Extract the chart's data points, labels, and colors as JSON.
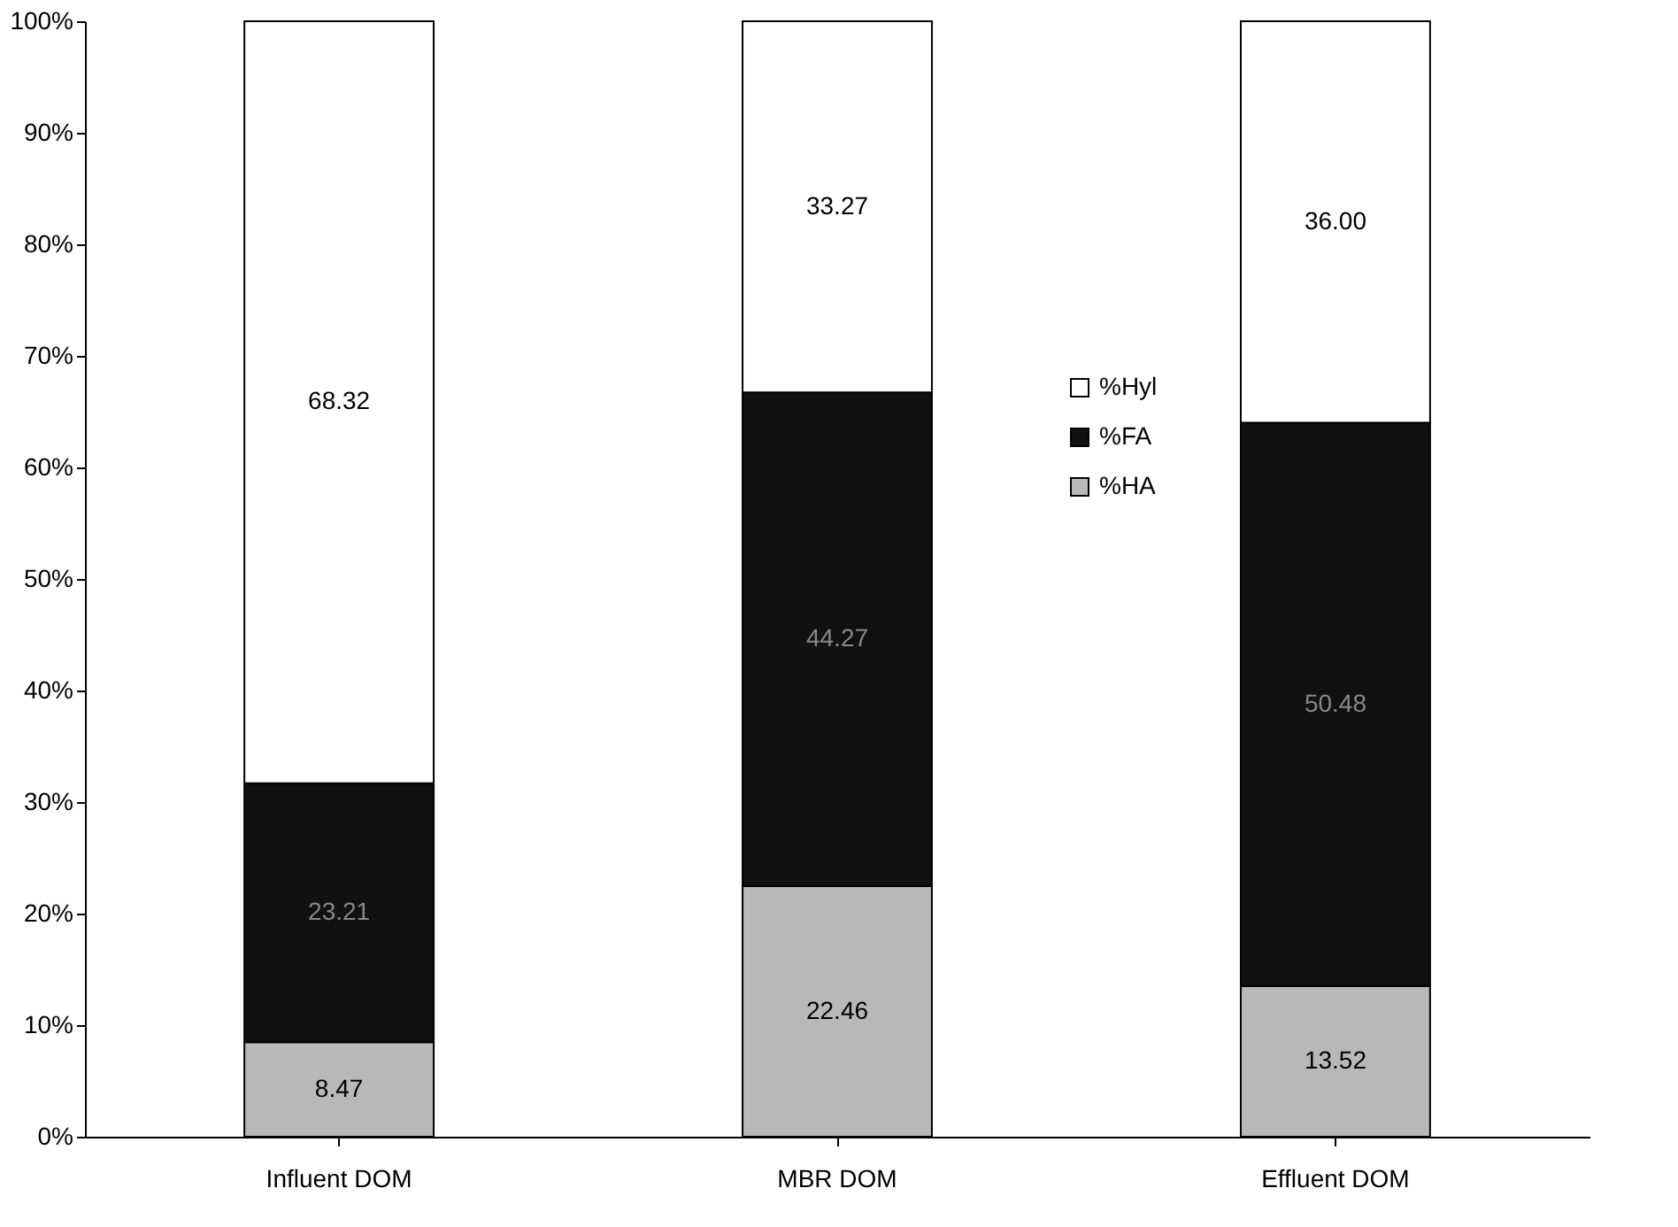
{
  "chart_data": {
    "type": "bar",
    "stacked": true,
    "categories": [
      "Influent DOM",
      "MBR DOM",
      "Effluent DOM"
    ],
    "series": [
      {
        "name": "%HA",
        "color": "#b8b8b8",
        "values": [
          8.47,
          22.46,
          13.52
        ],
        "value_labels": [
          "8.47",
          "22.46",
          "13.52"
        ]
      },
      {
        "name": "%FA",
        "color": "#111111",
        "values": [
          23.21,
          44.27,
          50.48
        ],
        "value_labels": [
          "23.21",
          "44.27",
          "50.48"
        ]
      },
      {
        "name": "%Hyl",
        "color": "#ffffff",
        "values": [
          68.32,
          33.27,
          36.0
        ],
        "value_labels": [
          "68.32",
          "33.27",
          "36.00"
        ]
      }
    ],
    "ylim": [
      0,
      100
    ],
    "yticks": [
      {
        "value": 0,
        "label": "0%"
      },
      {
        "value": 10,
        "label": "10%"
      },
      {
        "value": 20,
        "label": "20%"
      },
      {
        "value": 30,
        "label": "30%"
      },
      {
        "value": 40,
        "label": "40%"
      },
      {
        "value": 50,
        "label": "50%"
      },
      {
        "value": 60,
        "label": "60%"
      },
      {
        "value": 70,
        "label": "70%"
      },
      {
        "value": 80,
        "label": "80%"
      },
      {
        "value": 90,
        "label": "90%"
      },
      {
        "value": 100,
        "label": "100%"
      }
    ],
    "legend": "right",
    "grid": false
  }
}
